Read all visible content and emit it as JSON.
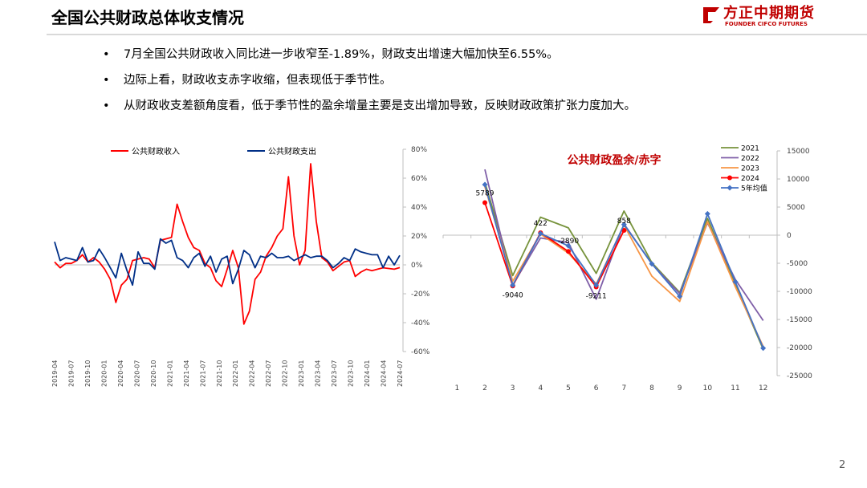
{
  "header": {
    "title": "全国公共财政总体收支情况",
    "logo_cn": "方正中期期货",
    "logo_en": "FOUNDER CIFCO FUTURES"
  },
  "bullets": [
    "7月全国公共财政收入同比进一步收窄至-1.89%，财政支出增速大幅加快至6.55%。",
    "边际上看，财政收支赤字收缩，但表现低于季节性。",
    "从财政收支差额角度看，低于季节性的盈余增量主要是支出增加导致，反映财政政策扩张力度加大。"
  ],
  "bullet_marker": "•",
  "page_number": "2",
  "chart_data": [
    {
      "type": "line",
      "title": "",
      "yaxis_position": "right",
      "ylim": [
        -60,
        80
      ],
      "yticks": [
        "80%",
        "60%",
        "40%",
        "20%",
        "0%",
        "-20%",
        "-40%",
        "-60%"
      ],
      "yticks_values": [
        80,
        60,
        40,
        20,
        0,
        -20,
        -40,
        -60
      ],
      "x_tick_labels": [
        "2019-04",
        "2019-07",
        "2019-10",
        "2020-01",
        "2020-04",
        "2020-07",
        "2020-10",
        "2021-01",
        "2021-04",
        "2021-07",
        "2021-10",
        "2022-01",
        "2022-04",
        "2022-07",
        "2022-10",
        "2023-01",
        "2023-04",
        "2023-07",
        "2023-10",
        "2024-01",
        "2024-04",
        "2024-07"
      ],
      "legend_position": "top",
      "series": [
        {
          "name": "公共财政收入",
          "color": "#ff0000",
          "values": [
            2,
            -2,
            1,
            1,
            3,
            7,
            2,
            5,
            2,
            -3,
            -10,
            -26,
            -14,
            -10,
            3,
            4,
            5,
            4,
            -2,
            17,
            18,
            19,
            42,
            30,
            19,
            12,
            10,
            1,
            -2,
            -11,
            -15,
            -3,
            10,
            -2,
            -41,
            -32,
            -10,
            -5,
            6,
            12,
            20,
            25,
            61,
            20,
            0,
            10,
            70,
            30,
            5,
            2,
            -4,
            -1,
            2,
            3,
            -8,
            -5,
            -3,
            -4,
            -3,
            -2,
            -2.5,
            -3,
            -1.89
          ]
        },
        {
          "name": "公共财政支出",
          "color": "#002f87",
          "values": [
            16,
            3,
            5,
            4,
            3,
            12,
            2,
            3,
            11,
            5,
            -2,
            -9,
            8,
            -4,
            -14,
            9,
            1,
            1,
            -3,
            18,
            15,
            17,
            5,
            3,
            -2,
            5,
            8,
            -1,
            6,
            -5,
            4,
            6,
            -13,
            -3,
            10,
            7,
            -2,
            6,
            5,
            8,
            5,
            5,
            6,
            3,
            5,
            7,
            5,
            6,
            6,
            3,
            -2,
            1,
            5,
            3,
            11,
            9,
            8,
            7,
            7,
            -2,
            6,
            0,
            6.55
          ]
        }
      ]
    },
    {
      "type": "line",
      "title": "公共财政盈余/赤字",
      "yaxis_position": "right",
      "ylim": [
        -25000,
        15000
      ],
      "yticks": [
        "15000",
        "10000",
        "5000",
        "0",
        "-5000",
        "-10000",
        "-15000",
        "-20000",
        "-25000"
      ],
      "yticks_values": [
        15000,
        10000,
        5000,
        0,
        -5000,
        -10000,
        -15000,
        -20000,
        -25000
      ],
      "categories": [
        "1",
        "2",
        "3",
        "4",
        "5",
        "6",
        "7",
        "8",
        "9",
        "10",
        "11",
        "12"
      ],
      "legend_position": "top-right",
      "series": [
        {
          "name": "2021",
          "color": "#77933c",
          "marker": "none",
          "values": [
            null,
            9400,
            -7200,
            3200,
            1300,
            -6800,
            4300,
            -4900,
            -10200,
            3000,
            -8800,
            -20300
          ]
        },
        {
          "name": "2022",
          "color": "#7f5fa8",
          "marker": "none",
          "values": [
            null,
            11700,
            -8900,
            -500,
            -1300,
            -11400,
            2000,
            -5100,
            -10400,
            2200,
            -7900,
            -15200
          ]
        },
        {
          "name": "2023",
          "color": "#f79646",
          "marker": "none",
          "values": [
            null,
            8600,
            -8200,
            200,
            -3200,
            -8700,
            1800,
            -7300,
            -11800,
            2400,
            -9200,
            -19800
          ]
        },
        {
          "name": "2024",
          "color": "#ff0000",
          "marker": "circle",
          "values": [
            null,
            5789,
            -9040,
            422,
            -2890,
            -9211,
            858,
            null,
            null,
            null,
            null,
            null
          ]
        },
        {
          "name": "5年均值",
          "color": "#4472c4",
          "marker": "diamond",
          "values": [
            null,
            9000,
            -8900,
            300,
            -1900,
            -8900,
            1900,
            -5100,
            -10900,
            3800,
            -8300,
            -20100
          ]
        }
      ],
      "data_labels": [
        {
          "category": "2",
          "value": 5789,
          "label": "5789"
        },
        {
          "category": "3",
          "value": -9040,
          "label": "-9040"
        },
        {
          "category": "4",
          "value": 422,
          "label": "422"
        },
        {
          "category": "5",
          "value": -2890,
          "label": "-2890"
        },
        {
          "category": "6",
          "value": -9211,
          "label": "-9211"
        },
        {
          "category": "7",
          "value": 858,
          "label": "858"
        }
      ]
    }
  ]
}
